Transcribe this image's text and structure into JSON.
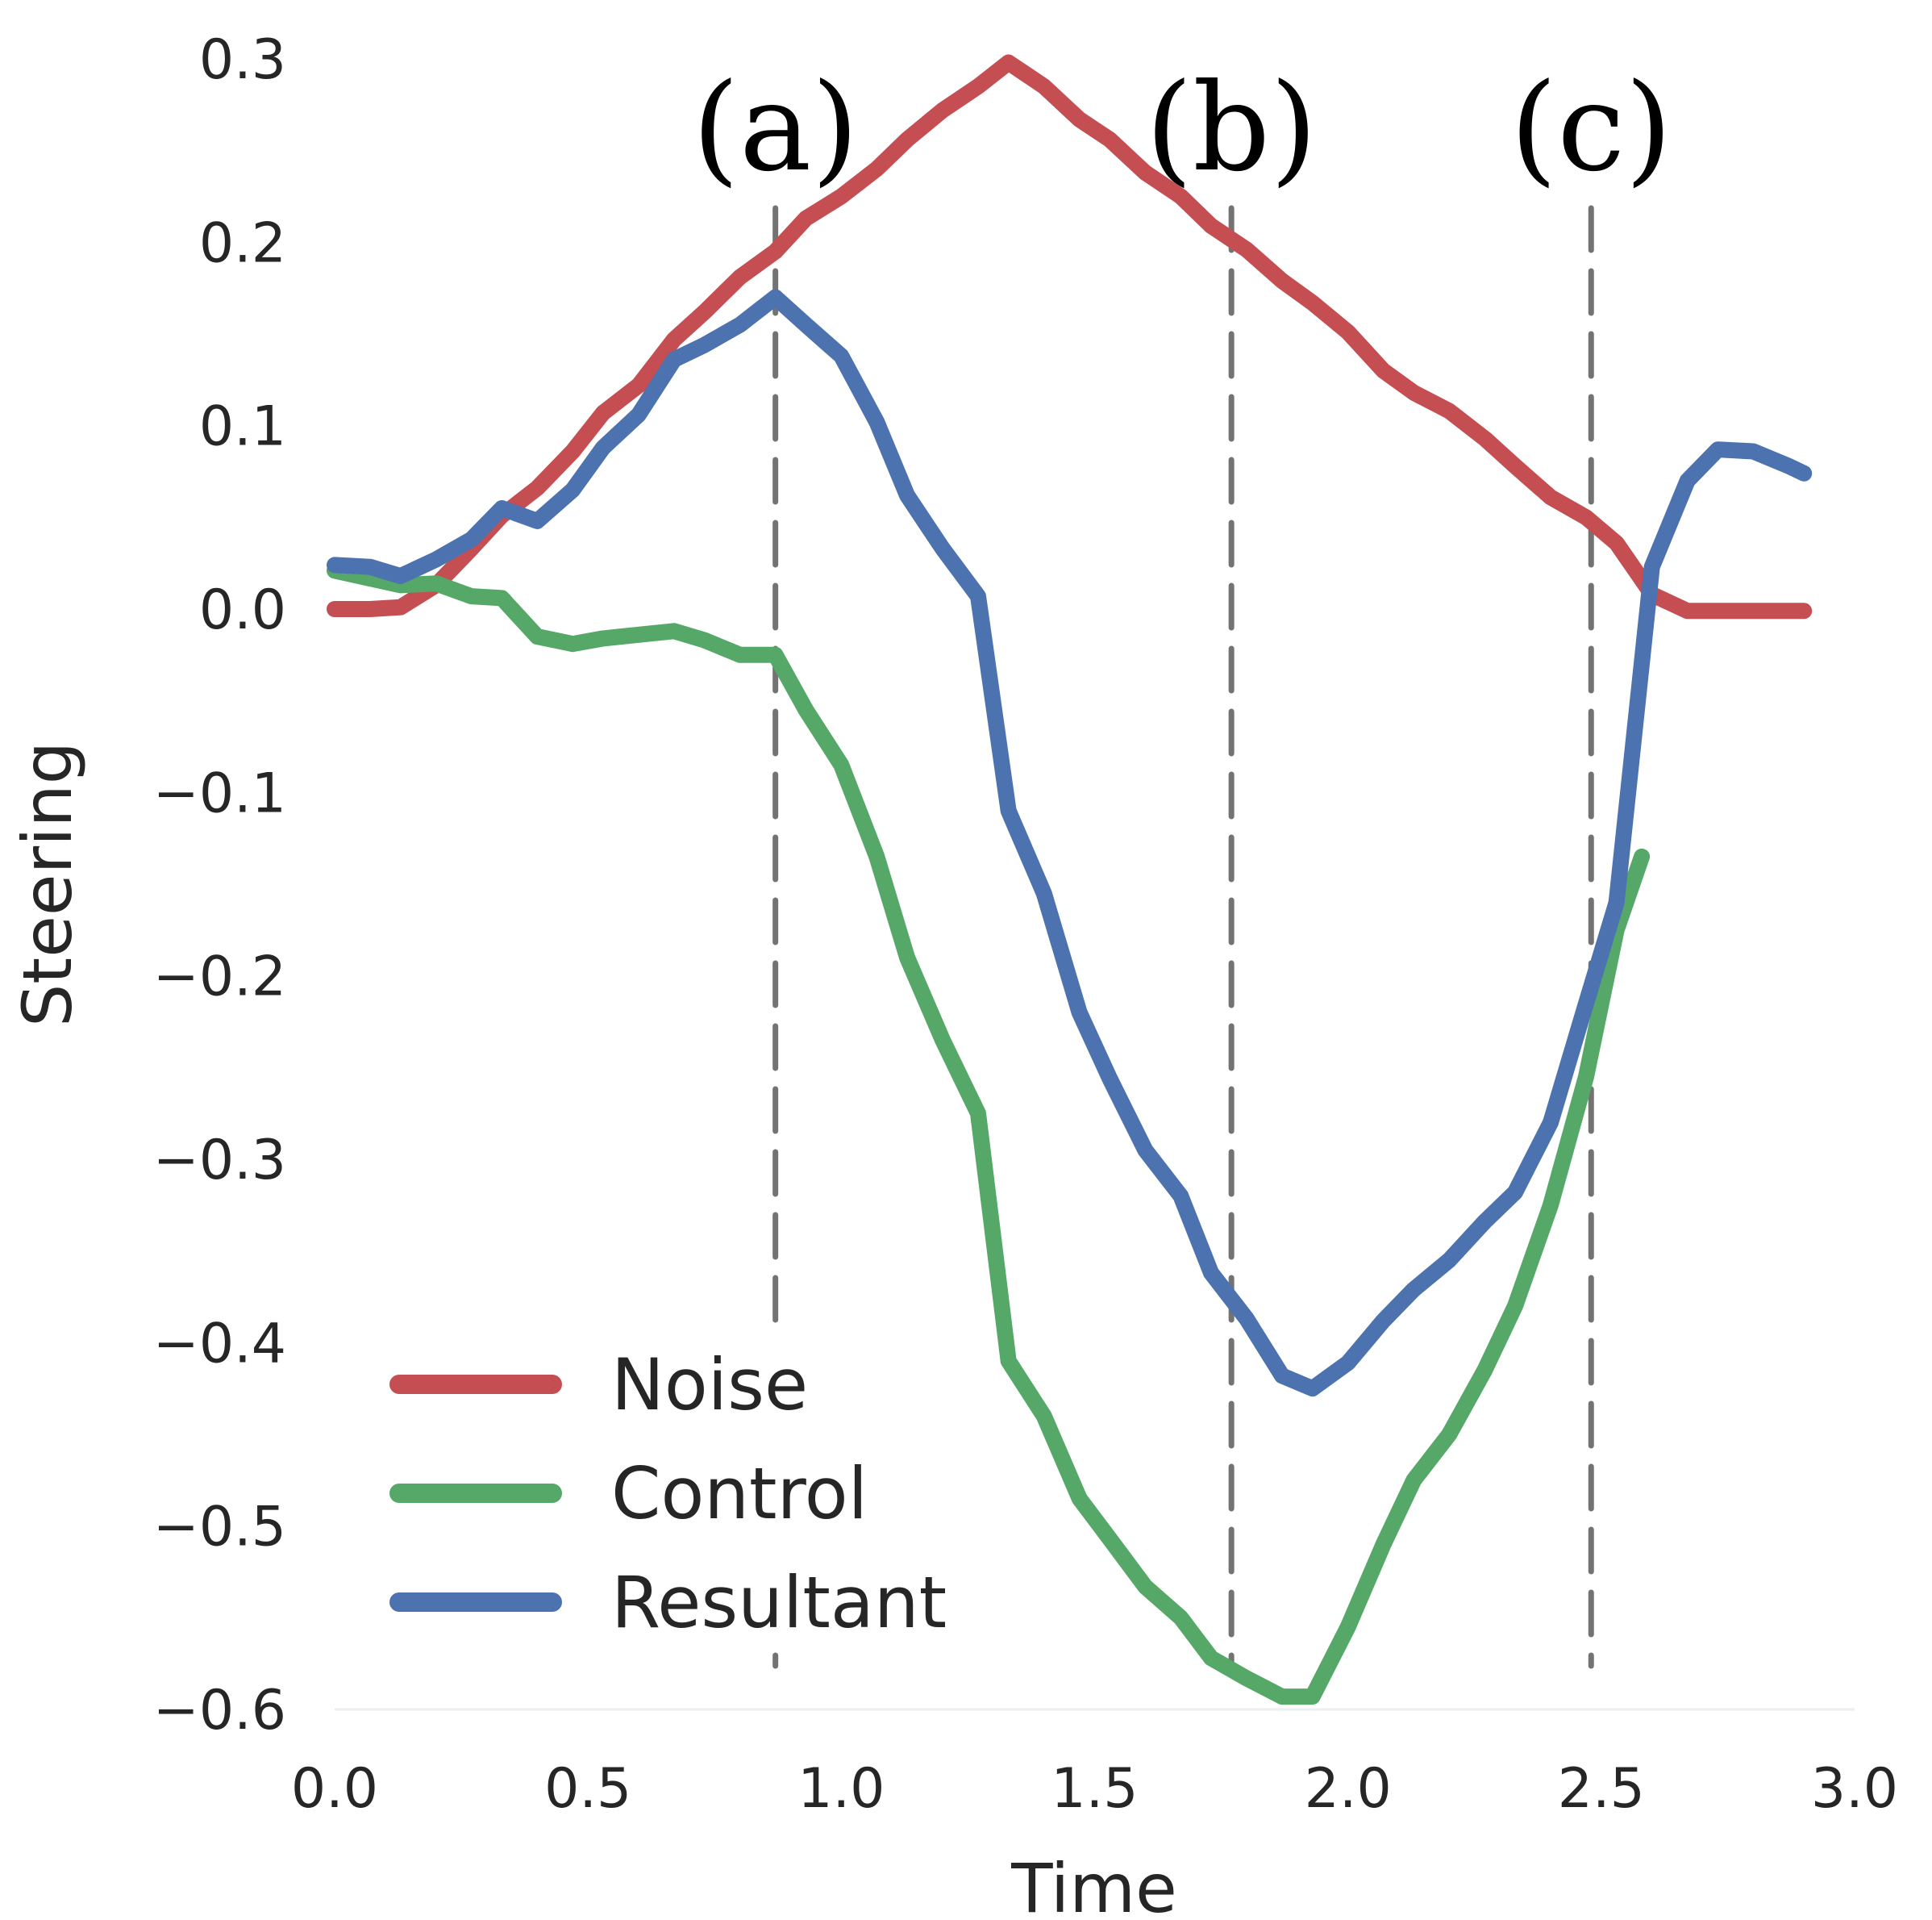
{
  "chart_data": {
    "type": "line",
    "title": "",
    "xlabel": "Time",
    "ylabel": "Steering",
    "xlim": [
      0.0,
      3.0
    ],
    "ylim": [
      -0.6,
      0.3
    ],
    "xticks": [
      0.0,
      0.5,
      1.0,
      1.5,
      2.0,
      2.5,
      3.0
    ],
    "xtick_labels": [
      "0.0",
      "0.5",
      "1.0",
      "1.5",
      "2.0",
      "2.5",
      "3.0"
    ],
    "yticks": [
      0.3,
      0.2,
      0.1,
      0.0,
      -0.1,
      -0.2,
      -0.3,
      -0.4,
      -0.5,
      -0.6
    ],
    "ytick_labels": [
      "0.3",
      "0.2",
      "0.1",
      "0.0",
      "−0.1",
      "−0.2",
      "−0.3",
      "−0.4",
      "−0.5",
      "−0.6"
    ],
    "grid": false,
    "legend_position": "bottom-left",
    "series": [
      {
        "name": "Noise",
        "color": "#c44e52",
        "x": [
          0.0,
          0.07,
          0.13,
          0.2,
          0.27,
          0.33,
          0.4,
          0.47,
          0.53,
          0.6,
          0.67,
          0.73,
          0.8,
          0.87,
          0.93,
          1.0,
          1.07,
          1.13,
          1.2,
          1.27,
          1.33,
          1.4,
          1.47,
          1.53,
          1.6,
          1.67,
          1.73,
          1.8,
          1.87,
          1.93,
          2.0,
          2.07,
          2.13,
          2.2,
          2.27,
          2.33,
          2.4,
          2.47,
          2.53,
          2.6,
          2.67,
          2.73,
          2.8,
          2.87,
          2.9
        ],
        "values": [
          0.0,
          0.0,
          0.001,
          0.013,
          0.033,
          0.051,
          0.066,
          0.086,
          0.107,
          0.122,
          0.147,
          0.162,
          0.181,
          0.195,
          0.213,
          0.225,
          0.24,
          0.256,
          0.272,
          0.285,
          0.298,
          0.285,
          0.267,
          0.256,
          0.238,
          0.225,
          0.209,
          0.196,
          0.179,
          0.167,
          0.151,
          0.13,
          0.118,
          0.108,
          0.093,
          0.078,
          0.061,
          0.05,
          0.036,
          0.008,
          -0.001,
          -0.001,
          -0.001,
          -0.001,
          -0.001
        ]
      },
      {
        "name": "Control",
        "color": "#55a868",
        "x": [
          0.0,
          0.13,
          0.2,
          0.27,
          0.33,
          0.4,
          0.47,
          0.53,
          0.6,
          0.67,
          0.73,
          0.8,
          0.87,
          0.93,
          1.0,
          1.07,
          1.13,
          1.2,
          1.27,
          1.33,
          1.4,
          1.47,
          1.53,
          1.6,
          1.67,
          1.73,
          1.8,
          1.87,
          1.93,
          2.0,
          2.07,
          2.13,
          2.2,
          2.27,
          2.33,
          2.4,
          2.47,
          2.53,
          2.58
        ],
        "values": [
          0.021,
          0.013,
          0.014,
          0.007,
          0.006,
          -0.015,
          -0.019,
          -0.016,
          -0.014,
          -0.012,
          -0.017,
          -0.025,
          -0.025,
          -0.055,
          -0.085,
          -0.135,
          -0.19,
          -0.235,
          -0.275,
          -0.41,
          -0.44,
          -0.485,
          -0.507,
          -0.533,
          -0.55,
          -0.572,
          -0.583,
          -0.593,
          -0.593,
          -0.555,
          -0.51,
          -0.475,
          -0.45,
          -0.415,
          -0.38,
          -0.325,
          -0.255,
          -0.175,
          -0.135
        ]
      },
      {
        "name": "Resultant",
        "color": "#4c72b0",
        "x": [
          0.0,
          0.07,
          0.13,
          0.2,
          0.27,
          0.33,
          0.4,
          0.47,
          0.53,
          0.6,
          0.67,
          0.73,
          0.8,
          0.87,
          0.93,
          1.0,
          1.07,
          1.13,
          1.2,
          1.27,
          1.33,
          1.4,
          1.47,
          1.53,
          1.6,
          1.67,
          1.73,
          1.8,
          1.87,
          1.93,
          2.0,
          2.07,
          2.13,
          2.2,
          2.27,
          2.33,
          2.4,
          2.47,
          2.53,
          2.6,
          2.67,
          2.73,
          2.8,
          2.87,
          2.9
        ],
        "values": [
          0.024,
          0.023,
          0.018,
          0.027,
          0.038,
          0.055,
          0.048,
          0.065,
          0.088,
          0.106,
          0.136,
          0.144,
          0.155,
          0.17,
          0.155,
          0.138,
          0.102,
          0.062,
          0.033,
          0.007,
          -0.11,
          -0.155,
          -0.22,
          -0.256,
          -0.295,
          -0.32,
          -0.362,
          -0.387,
          -0.418,
          -0.425,
          -0.411,
          -0.388,
          -0.371,
          -0.355,
          -0.334,
          -0.318,
          -0.28,
          -0.215,
          -0.16,
          0.023,
          0.07,
          0.087,
          0.086,
          0.078,
          0.074
        ]
      }
    ],
    "annotations": [
      {
        "label": "(a)",
        "x": 0.87,
        "style": "dashed"
      },
      {
        "label": "(b)",
        "x": 1.77,
        "style": "dashed"
      },
      {
        "label": "(c)",
        "x": 2.48,
        "style": "dashed"
      }
    ]
  }
}
